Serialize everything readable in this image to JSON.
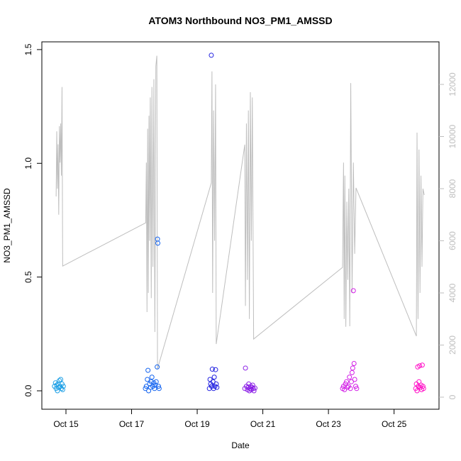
{
  "chart_data": {
    "type": "scatter",
    "title": "ATOM3 Northbound NO3_PM1_AMSSD",
    "xlabel": "Date",
    "ylabel": "NO3_PM1_AMSSD",
    "xlim": [
      14.265,
      26.37
    ],
    "xticks": [
      {
        "value": 15,
        "label": "Oct 15"
      },
      {
        "value": 17,
        "label": "Oct 17"
      },
      {
        "value": 19,
        "label": "Oct 19"
      },
      {
        "value": 21,
        "label": "Oct 21"
      },
      {
        "value": 23,
        "label": "Oct 23"
      },
      {
        "value": 25,
        "label": "Oct 25"
      }
    ],
    "ylim": [
      -0.081,
      1.534
    ],
    "yticks": [
      {
        "value": 0,
        "label": "0.0"
      },
      0.5,
      {
        "value": 1,
        "label": "1.0"
      },
      1.5
    ],
    "y2lim": [
      -463,
      13633
    ],
    "y2ticks": [
      0,
      2000,
      4000,
      6000,
      8000,
      10000,
      12000
    ],
    "y2color": "#bebebe",
    "series": [
      {
        "type": "line",
        "axis": "y2",
        "color": "#bebebe",
        "x": [
          14.7,
          14.72,
          14.74,
          14.76,
          14.78,
          14.8,
          14.82,
          14.84,
          14.86,
          14.88,
          14.9,
          17.43,
          17.45,
          17.47,
          17.49,
          17.51,
          17.53,
          17.55,
          17.57,
          17.6,
          17.62,
          17.65,
          17.68,
          17.71,
          17.74,
          17.77,
          17.79,
          19.43,
          19.45,
          19.47,
          19.5,
          19.53,
          19.56,
          19.58,
          20.45,
          20.47,
          20.5,
          20.53,
          20.56,
          20.59,
          20.62,
          20.65,
          20.68,
          20.72,
          23.43,
          23.46,
          23.48,
          23.5,
          23.53,
          23.56,
          23.59,
          23.62,
          23.65,
          23.68,
          23.72,
          23.76,
          23.8,
          23.84,
          25.68,
          25.7,
          25.73,
          25.76,
          25.79,
          25.82,
          25.85,
          25.88,
          25.92
        ],
        "values": [
          7700,
          10200,
          8000,
          9700,
          7000,
          10400,
          9000,
          10500,
          8500,
          11900,
          5030,
          6690,
          9000,
          3265,
          10300,
          4000,
          10800,
          6000,
          11500,
          3800,
          11900,
          5000,
          12200,
          2500,
          12700,
          13100,
          1090,
          8220,
          12500,
          4000,
          11000,
          6000,
          12000,
          2040,
          9690,
          3500,
          10500,
          4500,
          11000,
          3000,
          11700,
          6000,
          11500,
          2230,
          4980,
          9000,
          3000,
          8500,
          2700,
          7500,
          4500,
          8000,
          2720,
          12050,
          4000,
          9000,
          5500,
          8030,
          2340,
          10150,
          3000,
          9500,
          4000,
          8500,
          5000,
          8000,
          7755
        ]
      },
      {
        "type": "scatter",
        "color": "#1ea0e6",
        "x": [
          14.65,
          14.68,
          14.7,
          14.72,
          14.74,
          14.76,
          14.78,
          14.8,
          14.82,
          14.84,
          14.86,
          14.88,
          14.9,
          14.92
        ],
        "values": [
          0.02,
          0.035,
          0.01,
          0.025,
          0.0,
          0.03,
          0.015,
          0.045,
          0.02,
          0.05,
          0.01,
          0.03,
          0.005,
          0.02
        ]
      },
      {
        "type": "scatter",
        "color": "#1464f0",
        "x": [
          17.42,
          17.45,
          17.48,
          17.5,
          17.52,
          17.55,
          17.58,
          17.6,
          17.62,
          17.65,
          17.68,
          17.7,
          17.72,
          17.75,
          17.78,
          17.79,
          17.8,
          17.82,
          17.84
        ],
        "values": [
          0.01,
          0.02,
          0.05,
          0.09,
          0.0,
          0.03,
          0.015,
          0.04,
          0.06,
          0.02,
          0.035,
          0.01,
          0.025,
          0.04,
          0.105,
          0.667,
          0.649,
          0.02,
          0.01
        ]
      },
      {
        "type": "scatter",
        "color": "#2020e0",
        "x": [
          19.37,
          19.39,
          19.41,
          19.43,
          19.44,
          19.46,
          19.48,
          19.5,
          19.52,
          19.54,
          19.56,
          19.58,
          19.6
        ],
        "values": [
          0.01,
          0.05,
          0.03,
          1.475,
          0.02,
          0.095,
          0.04,
          0.01,
          0.06,
          0.02,
          0.093,
          0.03,
          0.015
        ]
      },
      {
        "type": "scatter",
        "color": "#8a1ee6",
        "x": [
          20.45,
          20.47,
          20.5,
          20.53,
          20.55,
          20.57,
          20.59,
          20.61,
          20.63,
          20.65,
          20.67,
          20.69,
          20.71,
          20.73,
          20.76
        ],
        "values": [
          0.01,
          0.1,
          0.02,
          0.005,
          0.015,
          0.03,
          0.0,
          0.01,
          0.02,
          0.005,
          0.015,
          0.025,
          0.01,
          0.0,
          0.012
        ]
      },
      {
        "type": "scatter",
        "color": "#d21ee6",
        "x": [
          23.43,
          23.46,
          23.49,
          23.52,
          23.55,
          23.58,
          23.61,
          23.64,
          23.67,
          23.7,
          23.72,
          23.74,
          23.76,
          23.78,
          23.8,
          23.83,
          23.86
        ],
        "values": [
          0.01,
          0.02,
          0.005,
          0.03,
          0.04,
          0.015,
          0.02,
          0.06,
          0.01,
          0.04,
          0.08,
          0.1,
          0.44,
          0.12,
          0.05,
          0.02,
          0.01
        ]
      },
      {
        "type": "scatter",
        "color": "#ff14c8",
        "x": [
          25.66,
          25.68,
          25.7,
          25.72,
          25.74,
          25.76,
          25.78,
          25.8,
          25.82,
          25.84,
          25.86,
          25.88,
          25.9
        ],
        "values": [
          0.01,
          0.03,
          0.0,
          0.105,
          0.02,
          0.04,
          0.11,
          0.015,
          0.025,
          0.005,
          0.113,
          0.02,
          0.01
        ]
      }
    ]
  }
}
